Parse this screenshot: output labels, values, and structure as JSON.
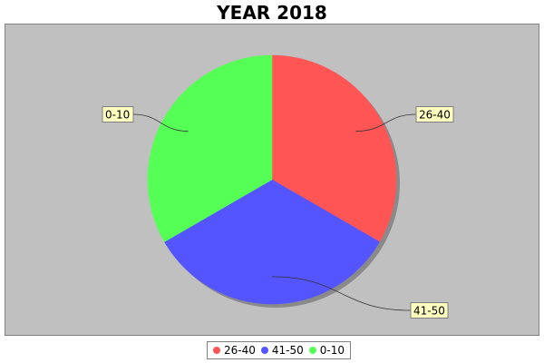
{
  "chart_data": {
    "type": "pie",
    "title": "YEAR 2018",
    "slices": [
      {
        "label": "26-40",
        "value": 1,
        "color": "#ff5555"
      },
      {
        "label": "41-50",
        "value": 1,
        "color": "#5555ff"
      },
      {
        "label": "0-10",
        "value": 1,
        "color": "#55ff55"
      }
    ],
    "start_angle_deg": 90,
    "direction": "clockwise",
    "plot_background": "#c0c0c0",
    "legend_position": "bottom",
    "labels_style": "callout-boxes"
  }
}
